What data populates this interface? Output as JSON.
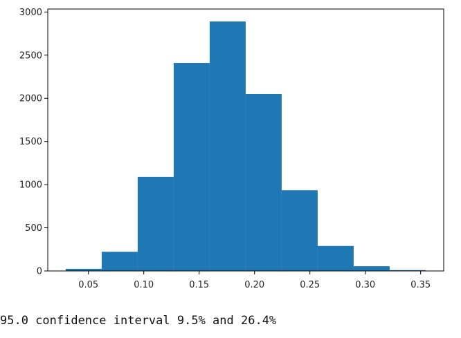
{
  "chart_data": {
    "type": "bar",
    "style": "histogram",
    "bar_color": "#1f77b4",
    "bins": [
      {
        "start": 0.0295,
        "end": 0.062,
        "count": 25
      },
      {
        "start": 0.062,
        "end": 0.0945,
        "count": 222
      },
      {
        "start": 0.0945,
        "end": 0.127,
        "count": 1090
      },
      {
        "start": 0.127,
        "end": 0.1595,
        "count": 2410
      },
      {
        "start": 0.1595,
        "end": 0.192,
        "count": 2890
      },
      {
        "start": 0.192,
        "end": 0.2245,
        "count": 2050
      },
      {
        "start": 0.2245,
        "end": 0.257,
        "count": 935
      },
      {
        "start": 0.257,
        "end": 0.2895,
        "count": 290
      },
      {
        "start": 0.2895,
        "end": 0.322,
        "count": 55
      },
      {
        "start": 0.322,
        "end": 0.3545,
        "count": 10
      }
    ],
    "xticks": [
      0.05,
      0.1,
      0.15,
      0.2,
      0.25,
      0.3,
      0.35
    ],
    "xtick_labels": [
      "0.05",
      "0.10",
      "0.15",
      "0.20",
      "0.25",
      "0.30",
      "0.35"
    ],
    "yticks": [
      0,
      500,
      1000,
      1500,
      2000,
      2500,
      3000
    ],
    "ytick_labels": [
      "0",
      "500",
      "1000",
      "1500",
      "2000",
      "2500",
      "3000"
    ],
    "xlim": [
      0.0133,
      0.3708
    ],
    "ylim": [
      0,
      3035
    ],
    "grid": false,
    "title": "",
    "xlabel": "",
    "ylabel": ""
  },
  "output": {
    "text": "95.0 confidence interval 9.5% and 26.4%"
  }
}
